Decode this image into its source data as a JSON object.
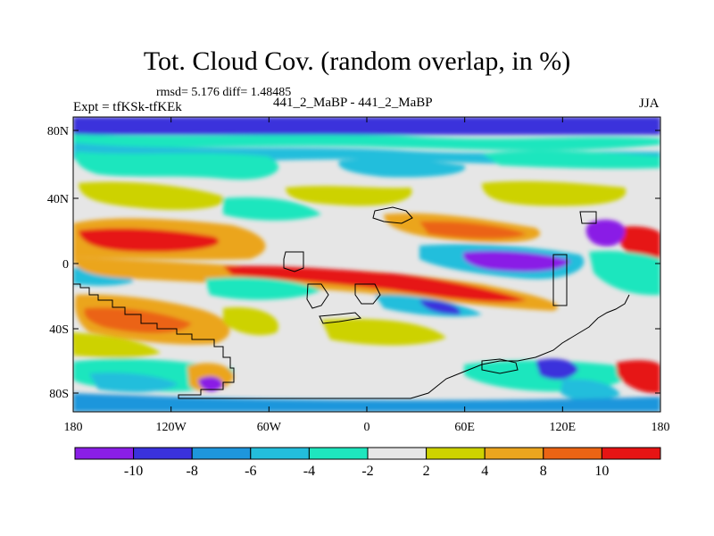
{
  "header": {
    "title": "Tot. Cloud Cov. (random overlap, in %)",
    "stats": "rmsd= 5.176 diff= 1.48485",
    "experiment": "Expt = tfKSk-tfKEk",
    "cases": "441_2_MaBP - 441_2_MaBP",
    "season": "JJA"
  },
  "axes": {
    "lat_ticks": [
      "80N",
      "40N",
      "0",
      "40S",
      "80S"
    ],
    "lon_ticks": [
      "180",
      "120W",
      "60W",
      "0",
      "60E",
      "120E",
      "180"
    ]
  },
  "colorbar": {
    "labels": [
      "-10",
      "-8",
      "-6",
      "-4",
      "-2",
      "2",
      "4",
      "8",
      "10"
    ],
    "colors": [
      "#8a1ee6",
      "#3a32dc",
      "#1e96dc",
      "#23bedc",
      "#1ee6be",
      "#e6e6e6",
      "#cdd200",
      "#eba51e",
      "#eb6414",
      "#e61414"
    ]
  }
}
